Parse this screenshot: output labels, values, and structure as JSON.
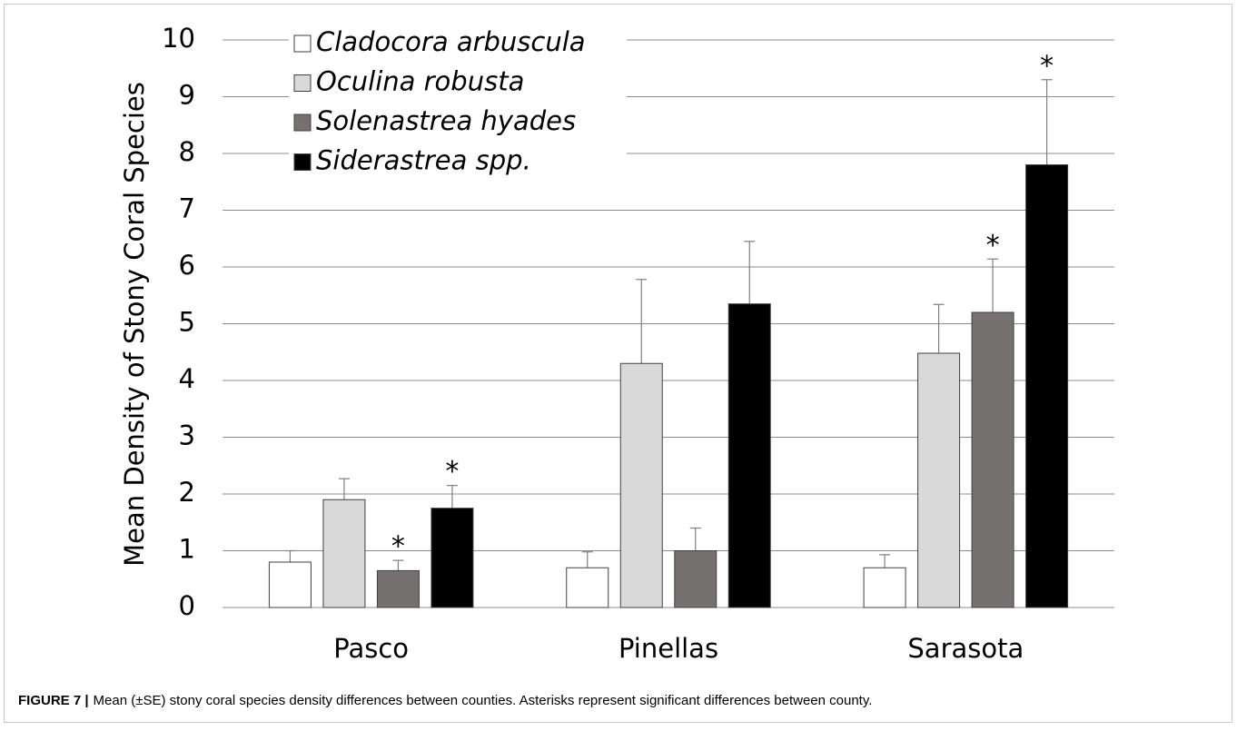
{
  "chart_data": {
    "type": "bar",
    "y_label": "Mean Density of Stony Coral Species",
    "categories": [
      "Pasco",
      "Pinellas",
      "Sarasota"
    ],
    "series": [
      {
        "name": "Cladocora arbuscula",
        "color": "#ffffff",
        "values": [
          0.8,
          0.7,
          0.7
        ],
        "errors": [
          0.2,
          0.28,
          0.23
        ]
      },
      {
        "name": "Oculina robusta",
        "color": "#d9d9d9",
        "values": [
          1.9,
          4.3,
          4.48
        ],
        "errors": [
          0.37,
          1.48,
          0.86
        ]
      },
      {
        "name": "Solenastrea hyades",
        "color": "#767171",
        "values": [
          0.65,
          1.0,
          5.2
        ],
        "errors": [
          0.18,
          0.4,
          0.94
        ]
      },
      {
        "name": "Siderastrea spp.",
        "color": "#000000",
        "values": [
          1.75,
          5.35,
          7.8
        ],
        "errors": [
          0.4,
          1.1,
          1.5
        ]
      }
    ],
    "annotations": [
      {
        "text": "*",
        "series": 2,
        "category": 0
      },
      {
        "text": "*",
        "series": 3,
        "category": 0
      },
      {
        "text": "*",
        "series": 2,
        "category": 2
      },
      {
        "text": "*",
        "series": 3,
        "category": 2
      }
    ],
    "ylim": [
      0,
      10
    ],
    "yticks": [
      0,
      1,
      2,
      3,
      4,
      5,
      6,
      7,
      8,
      9,
      10
    ],
    "grid": true,
    "legend": "upper left"
  },
  "caption_label": "FIGURE 7 |",
  "caption": "Mean (±SE) stony coral species density differences between counties. Asterisks represent significant differences between county."
}
